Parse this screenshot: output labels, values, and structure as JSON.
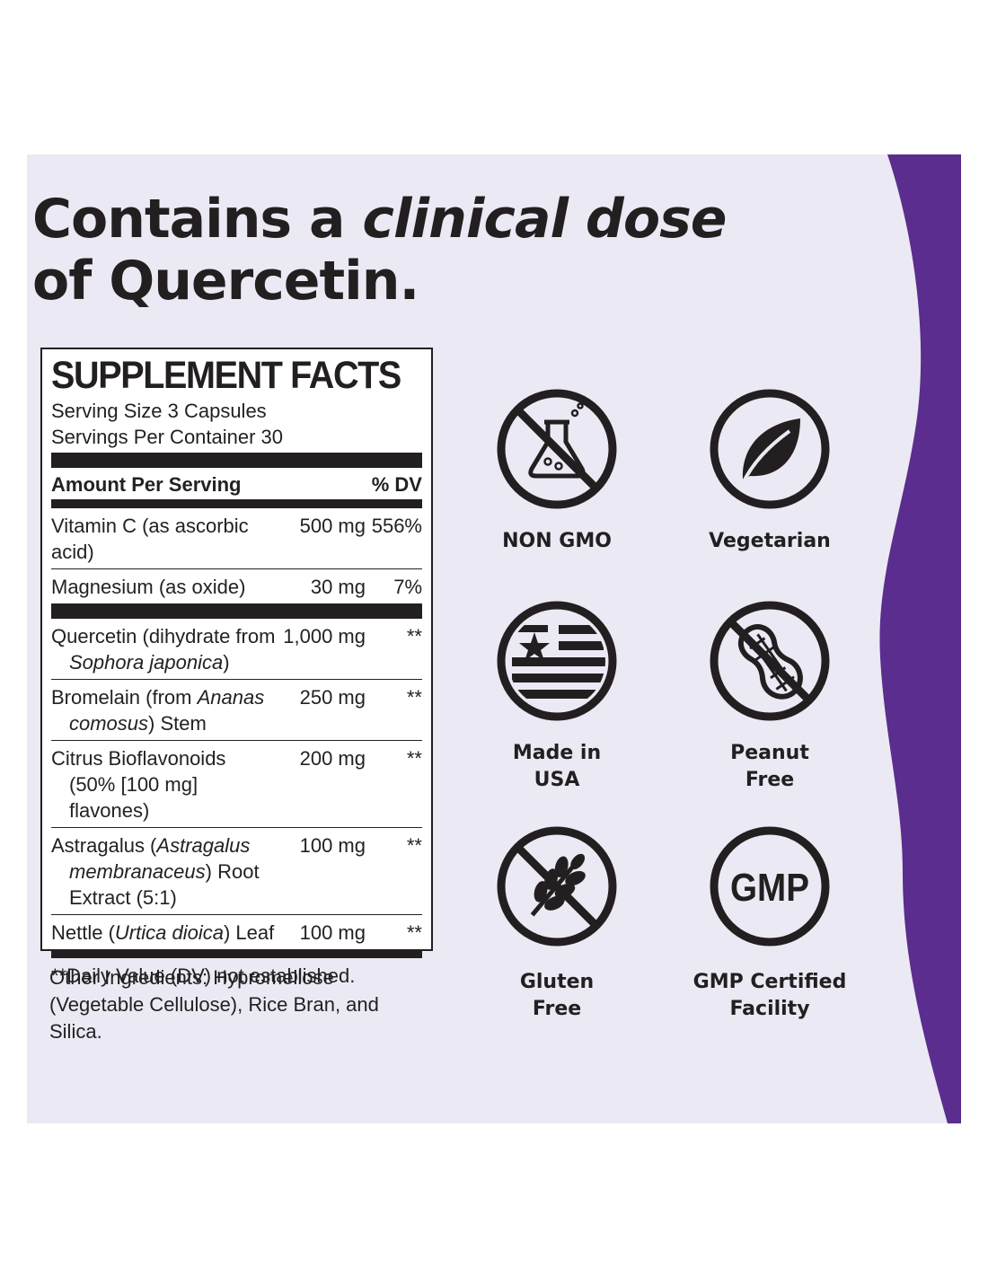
{
  "headline": {
    "line1_pre": "Contains a ",
    "line1_emph": "clinical dose",
    "line2": "of Quercetin."
  },
  "supplement_facts": {
    "title": "SUPPLEMENT FACTS",
    "serving_size": "Serving Size 3 Capsules",
    "servings_per_container": "Servings Per Container 30",
    "amount_header": "Amount Per Serving",
    "dv_header": "% DV",
    "rows": [
      {
        "name": "Vitamin C (as ascorbic acid)",
        "amount": "500 mg",
        "dv": "556%"
      },
      {
        "name": "Magnesium (as oxide)",
        "amount": "30 mg",
        "dv": "7%"
      },
      {
        "name_1": "Quercetin (dihydrate from",
        "name_2": "Sophora japonica",
        "name_3": ")",
        "amount": "1,000 mg",
        "dv": "**"
      },
      {
        "name_1": "Bromelain (from ",
        "name_2": "Ananas",
        "name_3": "comosus",
        "name_4": ") Stem",
        "amount": "250 mg",
        "dv": "**"
      },
      {
        "name_1": "Citrus Bioflavonoids",
        "name_2": "(50% [100 mg] flavones)",
        "amount": "200 mg",
        "dv": "**"
      },
      {
        "name_1": "Astragalus (",
        "name_2": "Astragalus",
        "name_3": "membranaceus",
        "name_4": ") Root",
        "name_5": "Extract (5:1)",
        "amount": "100 mg",
        "dv": "**"
      },
      {
        "name_1": "Nettle (",
        "name_2": "Urtica dioica",
        "name_3": ") Leaf",
        "amount": "100 mg",
        "dv": "**"
      }
    ],
    "footnote": "**Daily Value (DV) not established."
  },
  "other_ingredients": "Other Ingredients: Hypromellose (Vegetable Cellulose), Rice Bran, and Silica.",
  "badges": [
    {
      "icon": "no-gmo-flask-icon",
      "label": "NON GMO"
    },
    {
      "icon": "leaf-icon",
      "label": "Vegetarian"
    },
    {
      "icon": "usa-flag-icon",
      "label_1": "Made in",
      "label_2": "USA"
    },
    {
      "icon": "no-peanut-icon",
      "label_1": "Peanut",
      "label_2": "Free"
    },
    {
      "icon": "no-wheat-icon",
      "label_1": "Gluten",
      "label_2": "Free"
    },
    {
      "icon": "gmp-icon",
      "icon_text": "GMP",
      "label_1": "GMP Certified",
      "label_2": "Facility"
    }
  ],
  "colors": {
    "panel": "#ebe9f3",
    "purple": "#5b2d8e",
    "ink": "#231f20"
  }
}
